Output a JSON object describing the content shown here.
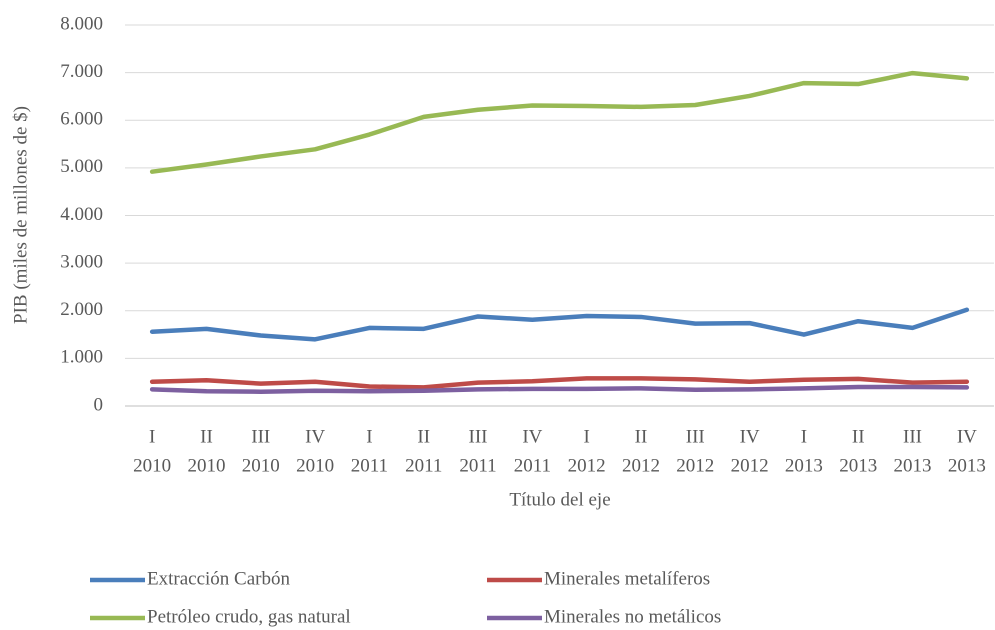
{
  "chart_data": {
    "type": "line",
    "ylabel": "PIB (miles de millones de $)",
    "xlabel": "Título del eje",
    "categories": [
      [
        "I",
        "2010"
      ],
      [
        "II",
        "2010"
      ],
      [
        "III",
        "2010"
      ],
      [
        "IV",
        "2010"
      ],
      [
        "I",
        "2011"
      ],
      [
        "II",
        "2011"
      ],
      [
        "III",
        "2011"
      ],
      [
        "IV",
        "2011"
      ],
      [
        "I",
        "2012"
      ],
      [
        "II",
        "2012"
      ],
      [
        "III",
        "2012"
      ],
      [
        "IV",
        "2012"
      ],
      [
        "I",
        "2013"
      ],
      [
        "II",
        "2013"
      ],
      [
        "III",
        "2013"
      ],
      [
        "IV",
        "2013"
      ]
    ],
    "series": [
      {
        "name": "Extracción Carbón",
        "color": "#4a7ebb",
        "values": [
          1560,
          1620,
          1480,
          1400,
          1640,
          1620,
          1880,
          1810,
          1890,
          1870,
          1730,
          1740,
          1500,
          1780,
          1640,
          2020
        ]
      },
      {
        "name": "Minerales metalíferos",
        "color": "#be4b48",
        "values": [
          510,
          540,
          470,
          510,
          410,
          390,
          490,
          520,
          580,
          580,
          560,
          510,
          550,
          570,
          490,
          510
        ]
      },
      {
        "name": "Petróleo crudo, gas natural",
        "color": "#98b954",
        "values": [
          4920,
          5070,
          5240,
          5390,
          5700,
          6070,
          6220,
          6310,
          6300,
          6280,
          6320,
          6510,
          6780,
          6760,
          6990,
          6880
        ]
      },
      {
        "name": "Minerales no metálicos",
        "color": "#7d60a0",
        "values": [
          350,
          310,
          300,
          320,
          310,
          320,
          350,
          360,
          360,
          370,
          340,
          350,
          370,
          400,
          400,
          390
        ]
      }
    ],
    "ylim": [
      0,
      8000
    ],
    "yticks": [
      0,
      {
        "value": 1000,
        "label": "1.000"
      },
      {
        "value": 2000,
        "label": "2.000"
      },
      {
        "value": 3000,
        "label": "3.000"
      },
      {
        "value": 4000,
        "label": "4.000"
      },
      {
        "value": 5000,
        "label": "5.000"
      },
      {
        "value": 6000,
        "label": "6.000"
      },
      {
        "value": 7000,
        "label": "7.000"
      },
      {
        "value": 8000,
        "label": "8.000"
      }
    ],
    "grid": true,
    "legend": "bottom"
  }
}
